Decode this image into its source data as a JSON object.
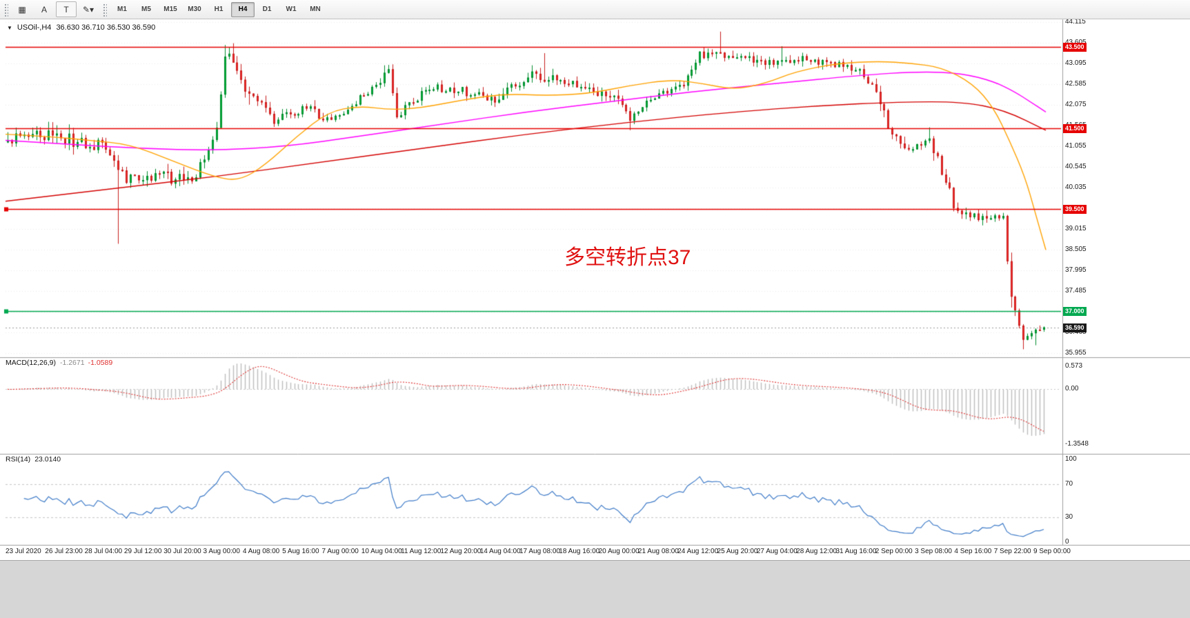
{
  "toolbar": {
    "tool_buttons": [
      {
        "name": "chart-layout",
        "glyph": "▦"
      },
      {
        "name": "text-a",
        "glyph": "A"
      },
      {
        "name": "text-t",
        "glyph": "T"
      },
      {
        "name": "drawing-menu",
        "glyph": "✎▾"
      }
    ],
    "timeframes": [
      "M1",
      "M5",
      "M15",
      "M30",
      "H1",
      "H4",
      "D1",
      "W1",
      "MN"
    ],
    "active_timeframe": "H4"
  },
  "chart": {
    "symbol_label": "USOil-,H4",
    "ohlc_text": "36.630 36.710 36.530 36.590",
    "collapse_icon": "▼",
    "annotation": {
      "text": "多空转折点37",
      "color": "#e01212"
    },
    "price_axis": {
      "min": 35.955,
      "max": 44.115,
      "step": 0.51,
      "labels": [
        "44.115",
        "43.605",
        "43.095",
        "42.585",
        "42.075",
        "41.565",
        "41.055",
        "40.545",
        "40.035",
        "39.525",
        "39.015",
        "38.505",
        "37.995",
        "37.485",
        "36.975",
        "36.465",
        "35.955"
      ]
    },
    "levels": [
      {
        "price": 43.5,
        "label": "43.500",
        "color": "#e60000",
        "marker": false
      },
      {
        "price": 41.5,
        "label": "41.500",
        "color": "#e60000",
        "marker": false
      },
      {
        "price": 39.5,
        "label": "39.500",
        "color": "#e60000",
        "marker": true
      },
      {
        "price": 37.0,
        "label": "37.000",
        "color": "#00a84f",
        "marker": true
      }
    ],
    "current_price": {
      "value": 36.59,
      "label": "36.590",
      "line_color": "#9a9a9a",
      "badge_bg": "#1a1a1a"
    },
    "colors": {
      "up": "#00b43c",
      "up_border": "#008c2d",
      "down": "#f52d2d",
      "down_border": "#c81c1c",
      "grid": "#ececec",
      "separator": "#9e9e9e"
    },
    "series": {
      "start": 41.15,
      "final_close": 36.59,
      "segments": [
        [
          8,
          41.35,
          0.18
        ],
        [
          8,
          41.2,
          0.22
        ],
        [
          8,
          41.05,
          0.18
        ],
        [
          6,
          40.25,
          0.15
        ],
        [
          8,
          40.35,
          0.15
        ],
        [
          8,
          40.15,
          0.18
        ],
        [
          6,
          41.5,
          0.15
        ],
        [
          2,
          43.3,
          0.12
        ],
        [
          6,
          42.4,
          0.25
        ],
        [
          6,
          41.7,
          0.15
        ],
        [
          8,
          42.0,
          0.12
        ],
        [
          6,
          41.7,
          0.15
        ],
        [
          8,
          42.3,
          0.12
        ],
        [
          6,
          42.9,
          0.12
        ],
        [
          2,
          41.8,
          0.15
        ],
        [
          8,
          42.5,
          0.12
        ],
        [
          8,
          42.4,
          0.14
        ],
        [
          8,
          42.2,
          0.12
        ],
        [
          8,
          42.8,
          0.14
        ],
        [
          8,
          42.7,
          0.15
        ],
        [
          8,
          42.4,
          0.13
        ],
        [
          6,
          42.2,
          0.14
        ],
        [
          3,
          41.7,
          0.12
        ],
        [
          5,
          42.2,
          0.1
        ],
        [
          8,
          42.6,
          0.1
        ],
        [
          4,
          43.3,
          0.12
        ],
        [
          8,
          43.3,
          0.13
        ],
        [
          8,
          43.1,
          0.12
        ],
        [
          8,
          43.2,
          0.12
        ],
        [
          8,
          43.1,
          0.12
        ],
        [
          6,
          43.0,
          0.12
        ],
        [
          4,
          42.5,
          0.13
        ],
        [
          4,
          41.6,
          0.16
        ],
        [
          4,
          40.9,
          0.16
        ],
        [
          6,
          41.3,
          0.12
        ],
        [
          6,
          39.6,
          0.2
        ],
        [
          8,
          39.2,
          0.15
        ],
        [
          4,
          39.35,
          0.1
        ],
        [
          2,
          37.2,
          0.25
        ],
        [
          3,
          36.4,
          0.15
        ],
        [
          5,
          36.59,
          0.12
        ]
      ],
      "wick_overrides": [
        {
          "i": 27,
          "low": 38.65
        },
        {
          "i": 53,
          "high": 43.55
        },
        {
          "i": 54,
          "high": 43.5
        },
        {
          "i": 92,
          "high": 43.05
        },
        {
          "i": 131,
          "high": 43.35
        },
        {
          "i": 152,
          "low": 41.45
        },
        {
          "i": 174,
          "high": 43.88
        },
        {
          "i": 189,
          "high": 43.52
        },
        {
          "i": 225,
          "high": 41.52
        },
        {
          "i": 248,
          "low": 36.05
        },
        {
          "i": 251,
          "low": 36.15
        }
      ]
    },
    "ma_lines": [
      {
        "name": "ma-slow-red",
        "color": "#d40000",
        "width": 1.4,
        "points": [
          [
            0,
            39.7
          ],
          [
            0.1,
            40.0
          ],
          [
            0.2,
            40.3
          ],
          [
            0.3,
            40.65
          ],
          [
            0.4,
            41.0
          ],
          [
            0.5,
            41.35
          ],
          [
            0.6,
            41.65
          ],
          [
            0.7,
            41.9
          ],
          [
            0.78,
            42.05
          ],
          [
            0.86,
            42.15
          ],
          [
            0.92,
            42.15
          ],
          [
            0.96,
            41.95
          ],
          [
            1,
            41.45
          ]
        ]
      },
      {
        "name": "ma-mid-magenta",
        "color": "#ff00ff",
        "width": 1.4,
        "points": [
          [
            0,
            41.2
          ],
          [
            0.06,
            41.1
          ],
          [
            0.13,
            41.0
          ],
          [
            0.2,
            40.95
          ],
          [
            0.27,
            41.05
          ],
          [
            0.34,
            41.3
          ],
          [
            0.42,
            41.6
          ],
          [
            0.5,
            41.9
          ],
          [
            0.58,
            42.15
          ],
          [
            0.66,
            42.4
          ],
          [
            0.74,
            42.6
          ],
          [
            0.82,
            42.8
          ],
          [
            0.88,
            42.9
          ],
          [
            0.92,
            42.85
          ],
          [
            0.95,
            42.65
          ],
          [
            0.97,
            42.4
          ],
          [
            0.985,
            42.15
          ],
          [
            1,
            41.9
          ]
        ]
      },
      {
        "name": "ma-fast-orange",
        "color": "#ffa200",
        "width": 1.4,
        "points": [
          [
            0,
            41.35
          ],
          [
            0.04,
            41.3
          ],
          [
            0.08,
            41.2
          ],
          [
            0.12,
            41.1
          ],
          [
            0.16,
            40.7
          ],
          [
            0.2,
            40.3
          ],
          [
            0.225,
            40.2
          ],
          [
            0.25,
            40.6
          ],
          [
            0.28,
            41.3
          ],
          [
            0.31,
            41.9
          ],
          [
            0.34,
            42.05
          ],
          [
            0.37,
            41.95
          ],
          [
            0.4,
            42.0
          ],
          [
            0.44,
            42.2
          ],
          [
            0.48,
            42.35
          ],
          [
            0.52,
            42.3
          ],
          [
            0.56,
            42.35
          ],
          [
            0.6,
            42.55
          ],
          [
            0.64,
            42.7
          ],
          [
            0.67,
            42.6
          ],
          [
            0.7,
            42.45
          ],
          [
            0.73,
            42.6
          ],
          [
            0.76,
            42.9
          ],
          [
            0.8,
            43.1
          ],
          [
            0.84,
            43.15
          ],
          [
            0.87,
            43.1
          ],
          [
            0.9,
            43.0
          ],
          [
            0.93,
            42.6
          ],
          [
            0.95,
            42.0
          ],
          [
            0.965,
            41.2
          ],
          [
            0.98,
            40.3
          ],
          [
            0.99,
            39.4
          ],
          [
            1,
            38.5
          ]
        ]
      }
    ]
  },
  "macd": {
    "label": "MACD(12,26,9)",
    "value_main": "-1.2671",
    "value_signal": "-1.0589",
    "axis": [
      "0.573",
      "0.00",
      "-1.3548"
    ],
    "range": [
      -1.45,
      0.65
    ],
    "histogram_color": "#bdbdbd",
    "signal_color": "#e03030",
    "params": [
      12,
      26,
      9
    ]
  },
  "rsi": {
    "label": "RSI(14)",
    "value": "23.0140",
    "axis": [
      "100",
      "70",
      "30",
      "0"
    ],
    "levels": [
      70,
      30
    ],
    "line_color": "#3e7bc8",
    "period": 14
  },
  "time_axis": [
    "23 Jul 2020",
    "26 Jul 23:00",
    "28 Jul 04:00",
    "29 Jul 12:00",
    "30 Jul 20:00",
    "3 Aug 00:00",
    "4 Aug 08:00",
    "5 Aug 16:00",
    "7 Aug 00:00",
    "10 Aug 04:00",
    "11 Aug 12:00",
    "12 Aug 20:00",
    "14 Aug 04:00",
    "17 Aug 08:00",
    "18 Aug 16:00",
    "20 Aug 00:00",
    "21 Aug 08:00",
    "24 Aug 12:00",
    "25 Aug 20:00",
    "27 Aug 04:00",
    "28 Aug 12:00",
    "31 Aug 16:00",
    "2 Sep 00:00",
    "3 Sep 08:00",
    "4 Sep 16:00",
    "7 Sep 22:00",
    "9 Sep 00:00"
  ]
}
